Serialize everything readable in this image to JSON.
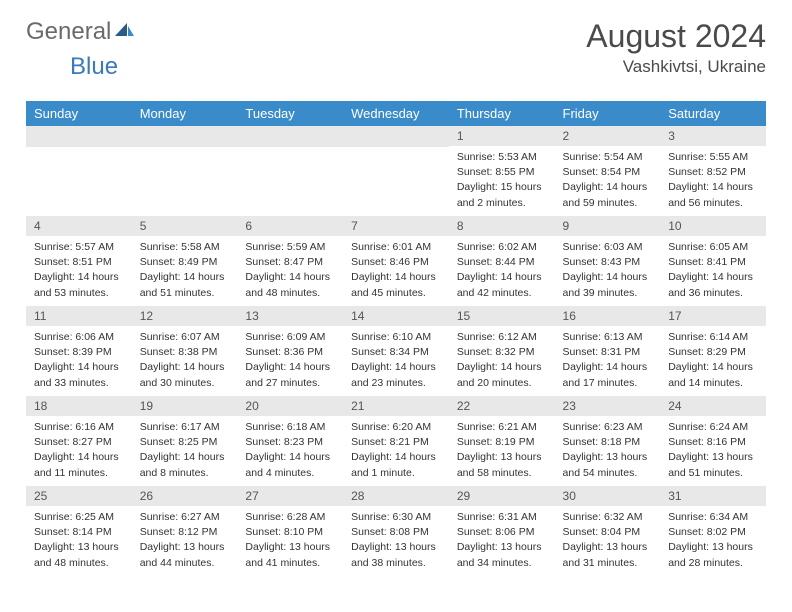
{
  "brand": {
    "general": "General",
    "blue": "Blue"
  },
  "title": {
    "month": "August 2024",
    "location": "Vashkivtsi, Ukraine"
  },
  "style": {
    "header_bg": "#3a8bc9",
    "header_fg": "#ffffff",
    "daynum_bg": "#e8e8e8",
    "daynum_fg": "#555555",
    "text_fg": "#333333",
    "title_fg": "#4a4a4a",
    "logo_general_fg": "#6a6a6a",
    "logo_blue_fg": "#3a7ab8"
  },
  "day_headers": [
    "Sunday",
    "Monday",
    "Tuesday",
    "Wednesday",
    "Thursday",
    "Friday",
    "Saturday"
  ],
  "weeks": [
    [
      {
        "empty": true
      },
      {
        "empty": true
      },
      {
        "empty": true
      },
      {
        "empty": true
      },
      {
        "num": "1",
        "sunrise": "Sunrise: 5:53 AM",
        "sunset": "Sunset: 8:55 PM",
        "daylight": "Daylight: 15 hours and 2 minutes."
      },
      {
        "num": "2",
        "sunrise": "Sunrise: 5:54 AM",
        "sunset": "Sunset: 8:54 PM",
        "daylight": "Daylight: 14 hours and 59 minutes."
      },
      {
        "num": "3",
        "sunrise": "Sunrise: 5:55 AM",
        "sunset": "Sunset: 8:52 PM",
        "daylight": "Daylight: 14 hours and 56 minutes."
      }
    ],
    [
      {
        "num": "4",
        "sunrise": "Sunrise: 5:57 AM",
        "sunset": "Sunset: 8:51 PM",
        "daylight": "Daylight: 14 hours and 53 minutes."
      },
      {
        "num": "5",
        "sunrise": "Sunrise: 5:58 AM",
        "sunset": "Sunset: 8:49 PM",
        "daylight": "Daylight: 14 hours and 51 minutes."
      },
      {
        "num": "6",
        "sunrise": "Sunrise: 5:59 AM",
        "sunset": "Sunset: 8:47 PM",
        "daylight": "Daylight: 14 hours and 48 minutes."
      },
      {
        "num": "7",
        "sunrise": "Sunrise: 6:01 AM",
        "sunset": "Sunset: 8:46 PM",
        "daylight": "Daylight: 14 hours and 45 minutes."
      },
      {
        "num": "8",
        "sunrise": "Sunrise: 6:02 AM",
        "sunset": "Sunset: 8:44 PM",
        "daylight": "Daylight: 14 hours and 42 minutes."
      },
      {
        "num": "9",
        "sunrise": "Sunrise: 6:03 AM",
        "sunset": "Sunset: 8:43 PM",
        "daylight": "Daylight: 14 hours and 39 minutes."
      },
      {
        "num": "10",
        "sunrise": "Sunrise: 6:05 AM",
        "sunset": "Sunset: 8:41 PM",
        "daylight": "Daylight: 14 hours and 36 minutes."
      }
    ],
    [
      {
        "num": "11",
        "sunrise": "Sunrise: 6:06 AM",
        "sunset": "Sunset: 8:39 PM",
        "daylight": "Daylight: 14 hours and 33 minutes."
      },
      {
        "num": "12",
        "sunrise": "Sunrise: 6:07 AM",
        "sunset": "Sunset: 8:38 PM",
        "daylight": "Daylight: 14 hours and 30 minutes."
      },
      {
        "num": "13",
        "sunrise": "Sunrise: 6:09 AM",
        "sunset": "Sunset: 8:36 PM",
        "daylight": "Daylight: 14 hours and 27 minutes."
      },
      {
        "num": "14",
        "sunrise": "Sunrise: 6:10 AM",
        "sunset": "Sunset: 8:34 PM",
        "daylight": "Daylight: 14 hours and 23 minutes."
      },
      {
        "num": "15",
        "sunrise": "Sunrise: 6:12 AM",
        "sunset": "Sunset: 8:32 PM",
        "daylight": "Daylight: 14 hours and 20 minutes."
      },
      {
        "num": "16",
        "sunrise": "Sunrise: 6:13 AM",
        "sunset": "Sunset: 8:31 PM",
        "daylight": "Daylight: 14 hours and 17 minutes."
      },
      {
        "num": "17",
        "sunrise": "Sunrise: 6:14 AM",
        "sunset": "Sunset: 8:29 PM",
        "daylight": "Daylight: 14 hours and 14 minutes."
      }
    ],
    [
      {
        "num": "18",
        "sunrise": "Sunrise: 6:16 AM",
        "sunset": "Sunset: 8:27 PM",
        "daylight": "Daylight: 14 hours and 11 minutes."
      },
      {
        "num": "19",
        "sunrise": "Sunrise: 6:17 AM",
        "sunset": "Sunset: 8:25 PM",
        "daylight": "Daylight: 14 hours and 8 minutes."
      },
      {
        "num": "20",
        "sunrise": "Sunrise: 6:18 AM",
        "sunset": "Sunset: 8:23 PM",
        "daylight": "Daylight: 14 hours and 4 minutes."
      },
      {
        "num": "21",
        "sunrise": "Sunrise: 6:20 AM",
        "sunset": "Sunset: 8:21 PM",
        "daylight": "Daylight: 14 hours and 1 minute."
      },
      {
        "num": "22",
        "sunrise": "Sunrise: 6:21 AM",
        "sunset": "Sunset: 8:19 PM",
        "daylight": "Daylight: 13 hours and 58 minutes."
      },
      {
        "num": "23",
        "sunrise": "Sunrise: 6:23 AM",
        "sunset": "Sunset: 8:18 PM",
        "daylight": "Daylight: 13 hours and 54 minutes."
      },
      {
        "num": "24",
        "sunrise": "Sunrise: 6:24 AM",
        "sunset": "Sunset: 8:16 PM",
        "daylight": "Daylight: 13 hours and 51 minutes."
      }
    ],
    [
      {
        "num": "25",
        "sunrise": "Sunrise: 6:25 AM",
        "sunset": "Sunset: 8:14 PM",
        "daylight": "Daylight: 13 hours and 48 minutes."
      },
      {
        "num": "26",
        "sunrise": "Sunrise: 6:27 AM",
        "sunset": "Sunset: 8:12 PM",
        "daylight": "Daylight: 13 hours and 44 minutes."
      },
      {
        "num": "27",
        "sunrise": "Sunrise: 6:28 AM",
        "sunset": "Sunset: 8:10 PM",
        "daylight": "Daylight: 13 hours and 41 minutes."
      },
      {
        "num": "28",
        "sunrise": "Sunrise: 6:30 AM",
        "sunset": "Sunset: 8:08 PM",
        "daylight": "Daylight: 13 hours and 38 minutes."
      },
      {
        "num": "29",
        "sunrise": "Sunrise: 6:31 AM",
        "sunset": "Sunset: 8:06 PM",
        "daylight": "Daylight: 13 hours and 34 minutes."
      },
      {
        "num": "30",
        "sunrise": "Sunrise: 6:32 AM",
        "sunset": "Sunset: 8:04 PM",
        "daylight": "Daylight: 13 hours and 31 minutes."
      },
      {
        "num": "31",
        "sunrise": "Sunrise: 6:34 AM",
        "sunset": "Sunset: 8:02 PM",
        "daylight": "Daylight: 13 hours and 28 minutes."
      }
    ]
  ]
}
